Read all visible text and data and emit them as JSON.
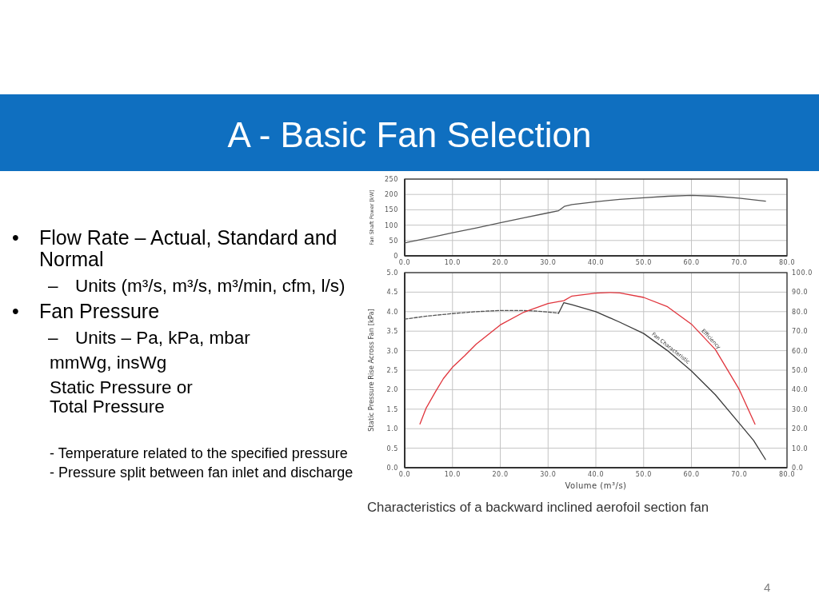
{
  "chart_data": [
    {
      "type": "other",
      "title": "A - Basic Fan Selection",
      "annotations": [
        "•\tFlow Rate – Actual, Standard and Normal",
        "–\tUnits (m³/s, m³/s, m³/min, cfm, l/s)",
        "•\tFan Pressure",
        "–\tUnits – Pa, kPa, mbar",
        "mmWg, insWg",
        "Static Pressure or",
        "Total Pressure",
        "-  Temperature related to the specified pressure",
        "-  Pressure split between fan inlet and discharge",
        "4"
      ]
    },
    {
      "type": "line",
      "ylabel": "Fan Shaft Power [kW]",
      "grid": true,
      "xlim": [
        0,
        80
      ],
      "xticks": [
        {
          "value": 0,
          "label": "0.0"
        },
        {
          "value": 10,
          "label": "10.0"
        },
        {
          "value": 20,
          "label": "20.0"
        },
        {
          "value": 30,
          "label": "30.0"
        },
        {
          "value": 40,
          "label": "40.0"
        },
        {
          "value": 50,
          "label": "50.0"
        },
        {
          "value": 60,
          "label": "60.0"
        },
        {
          "value": 70,
          "label": "70.0"
        },
        {
          "value": 80,
          "label": "80.0"
        }
      ],
      "ylim": [
        0,
        250
      ],
      "yticks": [
        0,
        50,
        100,
        150,
        200,
        250
      ],
      "series": [
        {
          "color": "#555555",
          "x": [
            0,
            5,
            10,
            15,
            20,
            25,
            30,
            32.2,
            33.4,
            35,
            40,
            45,
            50,
            55,
            60,
            65,
            70,
            75.5
          ],
          "values": [
            42,
            58,
            75,
            91,
            108,
            124,
            140,
            147,
            161,
            167,
            176,
            184,
            189,
            194,
            197,
            194,
            188,
            178
          ]
        }
      ]
    },
    {
      "type": "line",
      "xlabel": "Volume (m³/s)",
      "ylabel": "Static Pressure Rise Across Fan [kPa]",
      "grid": true,
      "xlim": [
        0,
        80
      ],
      "xticks": [
        {
          "value": 0,
          "label": "0.0"
        },
        {
          "value": 10,
          "label": "10.0"
        },
        {
          "value": 20,
          "label": "20.0"
        },
        {
          "value": 30,
          "label": "30.0"
        },
        {
          "value": 40,
          "label": "40.0"
        },
        {
          "value": 50,
          "label": "50.0"
        },
        {
          "value": 60,
          "label": "60.0"
        },
        {
          "value": 70,
          "label": "70.0"
        },
        {
          "value": 80,
          "label": "80.0"
        }
      ],
      "ylim": [
        0,
        5
      ],
      "yticks": [
        {
          "value": 0,
          "label": "0.0"
        },
        {
          "value": 0.5,
          "label": "0.5"
        },
        {
          "value": 1,
          "label": "1.0"
        },
        {
          "value": 1.5,
          "label": "1.5"
        },
        {
          "value": 2,
          "label": "2.0"
        },
        {
          "value": 2.5,
          "label": "2.5"
        },
        {
          "value": 3,
          "label": "3.0"
        },
        {
          "value": 3.5,
          "label": "3.5"
        },
        {
          "value": 4,
          "label": "4.0"
        },
        {
          "value": 4.5,
          "label": "4.5"
        },
        {
          "value": 5,
          "label": "5.0"
        }
      ],
      "y2lim": [
        0,
        100
      ],
      "y2ticks": [
        {
          "value": 0,
          "label": "0.0"
        },
        {
          "value": 10,
          "label": "10.0"
        },
        {
          "value": 20,
          "label": "20.0"
        },
        {
          "value": 30,
          "label": "30.0"
        },
        {
          "value": 40,
          "label": "40.0"
        },
        {
          "value": 50,
          "label": "50.0"
        },
        {
          "value": 60,
          "label": "60.0"
        },
        {
          "value": 70,
          "label": "70.0"
        },
        {
          "value": 80,
          "label": "80.0"
        },
        {
          "value": 90,
          "label": "90.0"
        },
        {
          "value": 100,
          "label": "100.0"
        }
      ],
      "series": [
        {
          "color": "#555555",
          "line_style": "dashed",
          "x": [
            0,
            5,
            10,
            15,
            20,
            25,
            28,
            30,
            32.2
          ],
          "values": [
            3.81,
            3.89,
            3.95,
            4.0,
            4.03,
            4.03,
            4.01,
            3.99,
            3.96
          ]
        },
        {
          "name": "Fan Characteristic",
          "color": "#3a3a3a",
          "x": [
            32.2,
            33.3,
            35,
            40,
            45,
            50,
            55,
            60,
            65,
            70,
            73,
            75.5
          ],
          "values": [
            3.96,
            4.23,
            4.18,
            4.0,
            3.73,
            3.44,
            3.0,
            2.48,
            1.87,
            1.14,
            0.7,
            0.21
          ]
        },
        {
          "name": "Efficiency",
          "color": "#e0343c",
          "axis": "y2",
          "x": [
            3.2,
            4.5,
            6.4,
            8.1,
            10,
            12.5,
            15,
            20,
            25,
            30,
            32.3,
            33.3,
            35,
            40,
            43,
            45,
            50,
            55,
            60,
            65,
            70,
            73.3
          ],
          "values": [
            22.4,
            30.6,
            38.8,
            45.7,
            51.5,
            57.3,
            63.4,
            73.2,
            79.8,
            84.2,
            85.2,
            85.6,
            88,
            89.5,
            89.8,
            89.6,
            87.3,
            82.5,
            73.6,
            60.6,
            40.1,
            22.3
          ]
        }
      ],
      "annotations": [
        "Characteristics of a backward inclined aerofoil section fan"
      ]
    }
  ]
}
